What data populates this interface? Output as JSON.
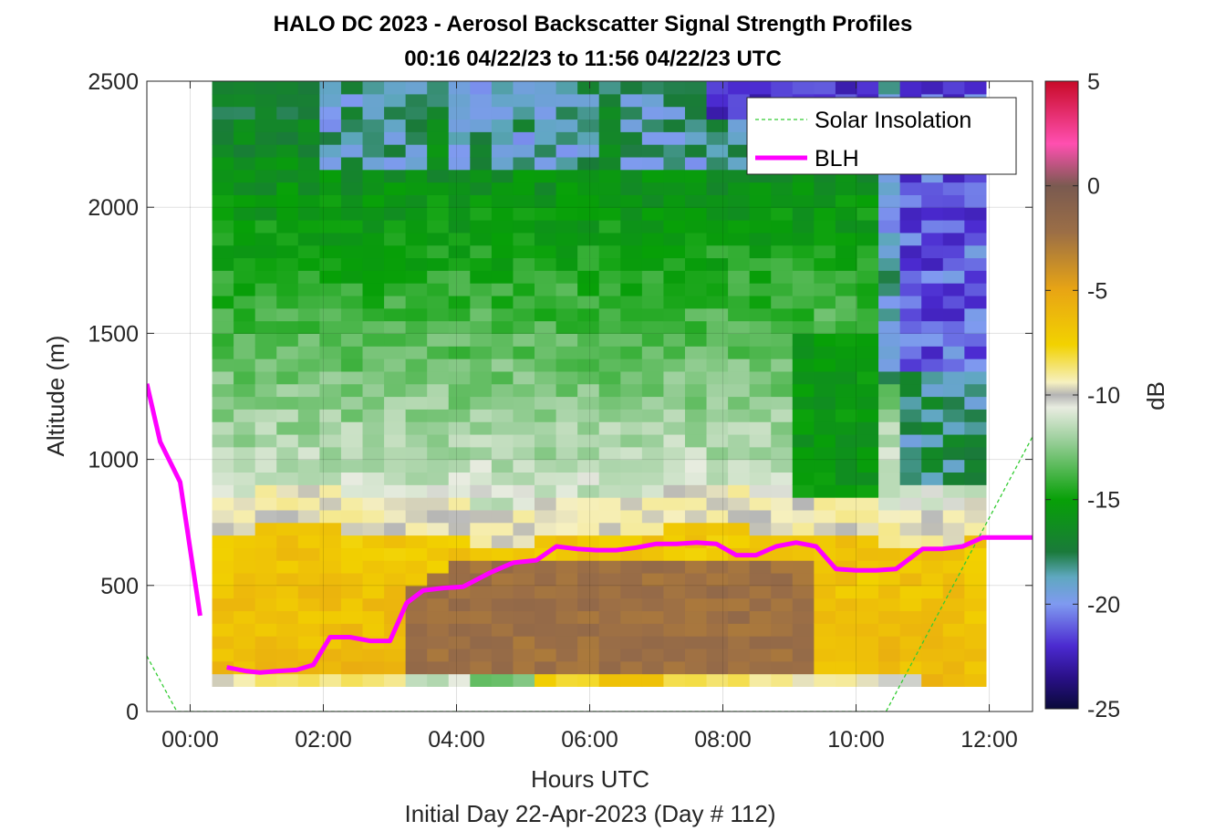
{
  "chart_data": {
    "type": "heatmap",
    "title": [
      "HALO DC 2023 - Aerosol Backscatter Signal Strength Profiles",
      "00:16 04/22/23 to 11:56 04/22/23  UTC"
    ],
    "xlabel": "Hours UTC",
    "xlabel2": "Initial Day 22-Apr-2023 (Day # 112)",
    "ylabel": "Altitude (m)",
    "xlim": [
      -0.65,
      12.65
    ],
    "ylim": [
      0,
      2500
    ],
    "x_ticks": [
      0,
      2,
      4,
      6,
      8,
      10,
      12
    ],
    "x_tick_labels": [
      "00:00",
      "02:00",
      "04:00",
      "06:00",
      "08:00",
      "10:00",
      "12:00"
    ],
    "y_ticks": [
      0,
      500,
      1000,
      1500,
      2000,
      2500
    ],
    "y_tick_labels": [
      "0",
      "500",
      "1000",
      "1500",
      "2000",
      "2500"
    ],
    "grid": true,
    "legend_position": "top-right",
    "colorbar": {
      "label": "dB",
      "range": [
        -25,
        5
      ],
      "ticks": [
        5,
        0,
        -5,
        -10,
        -15,
        -20,
        -25
      ],
      "tick_labels": [
        "5",
        "0",
        "-5",
        "-10",
        "-15",
        "-20",
        "-25"
      ]
    },
    "heatmap": {
      "x_start": 0.33,
      "x_end": 11.95,
      "n_columns": 36,
      "y_bottom": 100,
      "y_top": 2500,
      "n_rows": 48,
      "row_height_m": 50,
      "units": "dB"
    },
    "series": [
      {
        "name": "Solar Insolation",
        "style": "dashed",
        "color": "#33cc33",
        "x": [
          -0.65,
          -0.2,
          10.45,
          12.65
        ],
        "y": [
          220,
          0,
          0,
          1090
        ]
      },
      {
        "name": "BLH",
        "style": "solid",
        "color": "#ff00ff",
        "segments": [
          {
            "x": [
              -0.65,
              -0.45,
              -0.15,
              0.15
            ],
            "y": [
              1300,
              1070,
              910,
              380
            ]
          },
          {
            "x": [
              0.55,
              0.85,
              1.05,
              1.3,
              1.6,
              1.85,
              2.1,
              2.4,
              2.7,
              3.0,
              3.25,
              3.5,
              3.8,
              4.1,
              4.5,
              4.85,
              5.2,
              5.5,
              5.8,
              6.1,
              6.4,
              6.7,
              7.0,
              7.3,
              7.6,
              7.9,
              8.2,
              8.5,
              8.8,
              9.1,
              9.4,
              9.7,
              10.0,
              10.3,
              10.6,
              11.0,
              11.3,
              11.6,
              11.9,
              12.2,
              12.5,
              12.65
            ],
            "y": [
              175,
              160,
              155,
              160,
              165,
              185,
              295,
              295,
              280,
              280,
              430,
              480,
              490,
              495,
              550,
              590,
              600,
              655,
              645,
              640,
              640,
              650,
              665,
              665,
              670,
              665,
              620,
              620,
              655,
              670,
              655,
              565,
              560,
              560,
              565,
              645,
              645,
              655,
              690,
              690,
              690,
              690
            ]
          }
        ]
      }
    ]
  }
}
